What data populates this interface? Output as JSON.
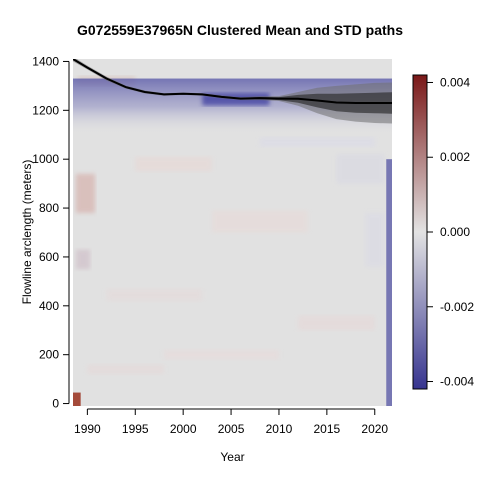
{
  "chart_data": {
    "type": "heatmap",
    "title": "G072559E37965N Clustered Mean and STD paths",
    "xlabel": "Year",
    "ylabel": "Flowline arclength (meters)",
    "xlim": [
      1988.5,
      2021.8
    ],
    "ylim": [
      -10,
      1410
    ],
    "x_ticks": [
      1990,
      1995,
      2000,
      2005,
      2010,
      2015,
      2020
    ],
    "y_ticks": [
      0,
      200,
      400,
      600,
      800,
      1000,
      1200,
      1400
    ],
    "colorbar": {
      "range": [
        -0.0042,
        0.0042
      ],
      "ticks": [
        0.004,
        0.002,
        0.0,
        -0.002,
        -0.004
      ],
      "tick_labels": [
        "0.004",
        "0.002",
        "0.000",
        "-0.002",
        "-0.004"
      ],
      "low_color": "#36348f",
      "mid_color": "#e3e3e3",
      "high_color": "#7a1818"
    },
    "mean_path": {
      "x": [
        1988.5,
        1990,
        1992,
        1994,
        1996,
        1998,
        2000,
        2002,
        2004,
        2006,
        2008,
        2010,
        2012,
        2014,
        2016,
        2018,
        2020,
        2021.8
      ],
      "y": [
        1410,
        1375,
        1330,
        1295,
        1275,
        1265,
        1268,
        1265,
        1255,
        1248,
        1250,
        1248,
        1247,
        1240,
        1232,
        1230,
        1230,
        1230
      ]
    },
    "std_band": {
      "x": [
        1988.5,
        1990,
        1992,
        1994,
        1996,
        1998,
        2000,
        2002,
        2004,
        2006,
        2008,
        2010,
        2012,
        2014,
        2016,
        2018,
        2020,
        2021.8
      ],
      "outer": [
        10,
        8,
        8,
        6,
        6,
        5,
        5,
        5,
        6,
        6,
        8,
        10,
        28,
        52,
        68,
        76,
        82,
        84
      ],
      "inner": [
        5,
        4,
        4,
        3,
        3,
        3,
        3,
        3,
        3,
        3,
        4,
        6,
        16,
        28,
        36,
        40,
        42,
        44
      ]
    }
  }
}
